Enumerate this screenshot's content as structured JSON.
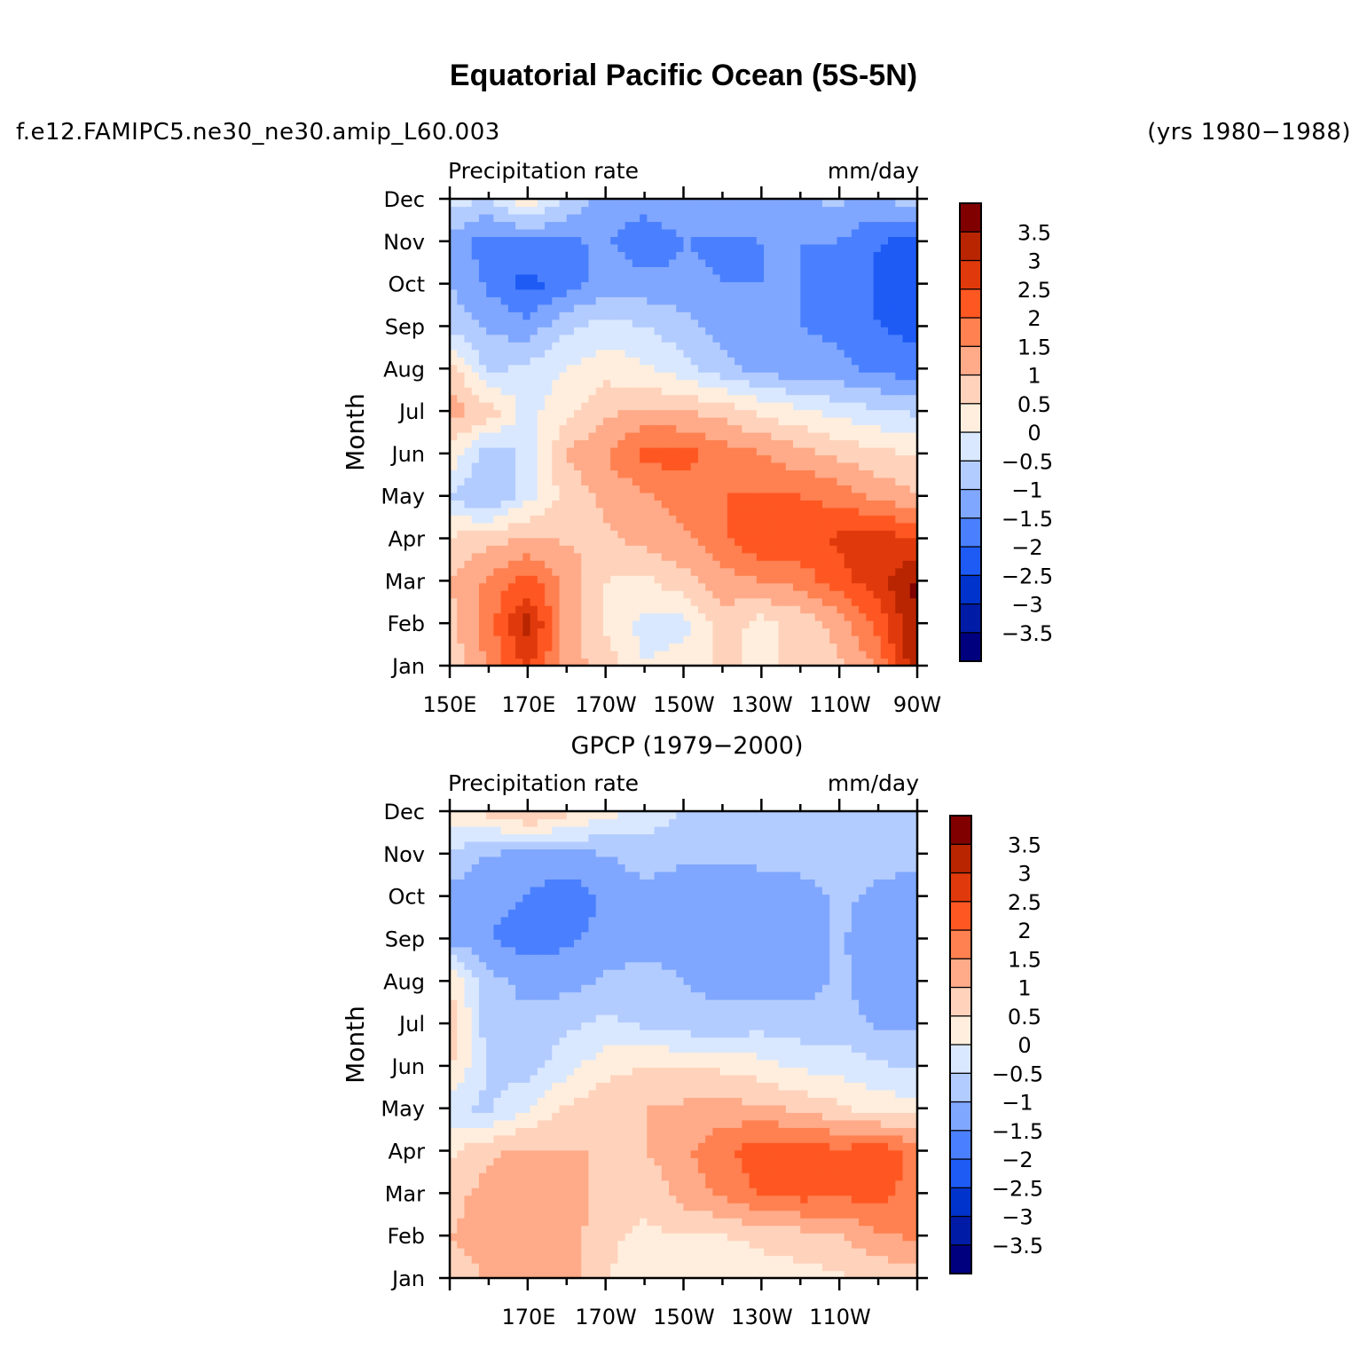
{
  "header": {
    "title": "Equatorial Pacific Ocean (5S-5N)",
    "case_name": "f.e12.FAMIPC5.ne30_ne30.amip_L60.003",
    "years": "(yrs 1980−1988)"
  },
  "colors": {
    "levels_palette": [
      "#00007f",
      "#001ca6",
      "#0033cc",
      "#1e5bf5",
      "#4a80ff",
      "#80a7ff",
      "#b3ccff",
      "#d9e8ff",
      "#ffeedd",
      "#ffd2bb",
      "#ffaa88",
      "#ff8050",
      "#ff5722",
      "#e03a0c",
      "#b82500",
      "#800000"
    ]
  },
  "chart_data": [
    {
      "type": "heatmap",
      "title": "",
      "left_title": "Precipitation rate",
      "right_title": "mm/day",
      "xlabel": "",
      "ylabel": "Month",
      "x_tick_labels": [
        "150E",
        "170E",
        "170W",
        "150W",
        "130W",
        "110W",
        "90W"
      ],
      "y_tick_labels": [
        "Jan",
        "Feb",
        "Mar",
        "Apr",
        "May",
        "Jun",
        "Jul",
        "Aug",
        "Sep",
        "Oct",
        "Nov",
        "Dec"
      ],
      "x_range": [
        "150E",
        "90W"
      ],
      "y_range": [
        "Jan",
        "Dec"
      ],
      "colorbar": {
        "orientation": "vertical",
        "labels": [
          "3.5",
          "3",
          "2.5",
          "2",
          "1.5",
          "1",
          "0.5",
          "0",
          "−0.5",
          "−1",
          "−1.5",
          "−2",
          "−2.5",
          "−3",
          "−3.5"
        ]
      },
      "x": [
        "150E",
        "160E",
        "170E",
        "180",
        "170W",
        "160W",
        "150W",
        "140W",
        "130W",
        "120W",
        "110W",
        "100W",
        "90W"
      ],
      "y": [
        "Jan",
        "Feb",
        "Mar",
        "Apr",
        "May",
        "Jun",
        "Jul",
        "Aug",
        "Sep",
        "Oct",
        "Nov",
        "Dec"
      ],
      "z": [
        [
          0.6,
          1.6,
          2.6,
          1.2,
          0.8,
          0.0,
          0.3,
          0.6,
          0.4,
          0.6,
          0.9,
          1.6,
          3.5
        ],
        [
          0.8,
          1.8,
          3.2,
          1.3,
          0.4,
          -0.2,
          -0.2,
          0.8,
          0.3,
          0.7,
          1.2,
          2.2,
          3.6
        ],
        [
          1.0,
          1.6,
          2.2,
          1.4,
          0.5,
          0.4,
          0.8,
          1.3,
          1.5,
          1.7,
          2.3,
          2.8,
          3.6
        ],
        [
          0.6,
          0.8,
          1.1,
          0.9,
          0.9,
          1.2,
          1.4,
          1.9,
          2.4,
          2.4,
          2.6,
          2.8,
          2.4
        ],
        [
          -0.6,
          -1.0,
          -0.2,
          0.7,
          1.1,
          1.4,
          1.7,
          2.0,
          2.0,
          2.0,
          1.8,
          1.4,
          1.0
        ],
        [
          0.4,
          -0.8,
          -0.4,
          1.0,
          1.5,
          2.2,
          2.2,
          1.8,
          1.5,
          1.2,
          0.9,
          0.6,
          0.5
        ],
        [
          1.2,
          0.8,
          -0.2,
          0.4,
          0.9,
          1.1,
          1.0,
          0.8,
          0.4,
          0.1,
          -0.2,
          -0.4,
          -0.6
        ],
        [
          0.8,
          -0.6,
          -0.4,
          0.0,
          0.3,
          0.1,
          -0.3,
          -0.8,
          -1.2,
          -1.3,
          -1.4,
          -1.6,
          -1.8
        ],
        [
          -0.7,
          -1.1,
          -1.3,
          -0.6,
          -0.3,
          -0.5,
          -0.8,
          -1.3,
          -1.5,
          -1.5,
          -1.6,
          -2.0,
          -2.2
        ],
        [
          -1.0,
          -1.6,
          -2.2,
          -1.8,
          -1.2,
          -1.3,
          -1.4,
          -1.5,
          -1.5,
          -1.5,
          -1.6,
          -2.1,
          -2.4
        ],
        [
          -1.3,
          -1.7,
          -1.6,
          -1.6,
          -1.4,
          -1.9,
          -1.5,
          -1.6,
          -1.5,
          -1.5,
          -1.5,
          -2.0,
          -2.1
        ],
        [
          -0.2,
          -0.6,
          0.4,
          -0.6,
          -1.2,
          -1.2,
          -1.1,
          -1.1,
          -1.0,
          -1.0,
          -0.9,
          -1.1,
          -0.7
        ]
      ]
    },
    {
      "type": "heatmap",
      "title": "GPCP (1979−2000)",
      "left_title": "Precipitation rate",
      "right_title": "mm/day",
      "xlabel": "",
      "ylabel": "Month",
      "x_tick_labels": [
        "170E",
        "170W",
        "150W",
        "130W",
        "110W"
      ],
      "y_tick_labels": [
        "Jan",
        "Feb",
        "Mar",
        "Apr",
        "May",
        "Jun",
        "Jul",
        "Aug",
        "Sep",
        "Oct",
        "Nov",
        "Dec"
      ],
      "x_range": [
        "150E",
        "90W"
      ],
      "y_range": [
        "Jan",
        "Dec"
      ],
      "colorbar": {
        "orientation": "vertical",
        "labels": [
          "3.5",
          "3",
          "2.5",
          "2",
          "1.5",
          "1",
          "0.5",
          "0",
          "−0.5",
          "−1",
          "−1.5",
          "−2",
          "−2.5",
          "−3",
          "−3.5"
        ]
      },
      "x": [
        "150E",
        "160E",
        "170E",
        "180",
        "170W",
        "160W",
        "150W",
        "140W",
        "130W",
        "120W",
        "110W",
        "100W",
        "90W"
      ],
      "y": [
        "Jan",
        "Feb",
        "Mar",
        "Apr",
        "May",
        "Jun",
        "Jul",
        "Aug",
        "Sep",
        "Oct",
        "Nov",
        "Dec"
      ],
      "z": [
        [
          0.6,
          1.1,
          1.3,
          1.2,
          0.5,
          0.3,
          0.3,
          0.2,
          0.3,
          0.3,
          0.4,
          0.6,
          0.7
        ],
        [
          1.0,
          1.3,
          1.2,
          1.3,
          0.6,
          0.4,
          0.5,
          0.5,
          0.6,
          0.8,
          1.0,
          1.4,
          1.6
        ],
        [
          0.8,
          1.2,
          1.3,
          1.4,
          0.7,
          0.6,
          1.2,
          1.6,
          2.1,
          2.2,
          2.1,
          2.2,
          1.8
        ],
        [
          0.4,
          0.9,
          1.1,
          1.0,
          1.0,
          1.0,
          1.4,
          1.9,
          2.3,
          2.4,
          2.1,
          2.3,
          1.8
        ],
        [
          -0.4,
          -0.6,
          0.0,
          0.6,
          0.9,
          1.0,
          1.1,
          1.2,
          1.1,
          0.9,
          0.6,
          0.3,
          0.2
        ],
        [
          0.6,
          -0.6,
          -0.8,
          -0.2,
          0.3,
          0.5,
          0.5,
          0.4,
          0.2,
          -0.1,
          -0.2,
          -0.4,
          -0.6
        ],
        [
          0.8,
          -0.8,
          -0.8,
          -0.6,
          -0.4,
          -0.6,
          -0.8,
          -0.8,
          -0.7,
          -0.8,
          -0.8,
          -1.1,
          -1.1
        ],
        [
          0.5,
          -0.8,
          -1.2,
          -1.2,
          -0.9,
          -0.8,
          -1.0,
          -1.2,
          -1.2,
          -1.2,
          -0.9,
          -1.3,
          -1.4
        ],
        [
          -1.2,
          -1.5,
          -1.7,
          -1.6,
          -1.3,
          -1.2,
          -1.2,
          -1.3,
          -1.4,
          -1.3,
          -0.9,
          -1.4,
          -1.4
        ],
        [
          -1.2,
          -1.4,
          -1.5,
          -1.9,
          -1.4,
          -1.1,
          -1.3,
          -1.3,
          -1.4,
          -1.2,
          -0.9,
          -1.1,
          -1.3
        ],
        [
          -0.6,
          -1.0,
          -1.2,
          -1.1,
          -1.0,
          -0.8,
          -0.9,
          -0.9,
          -0.8,
          -0.8,
          -0.7,
          -0.8,
          -0.8
        ],
        [
          0.3,
          0.7,
          1.2,
          0.7,
          0.2,
          -0.2,
          -0.5,
          -0.6,
          -0.6,
          -0.6,
          -0.6,
          -0.6,
          -0.6
        ]
      ]
    }
  ]
}
